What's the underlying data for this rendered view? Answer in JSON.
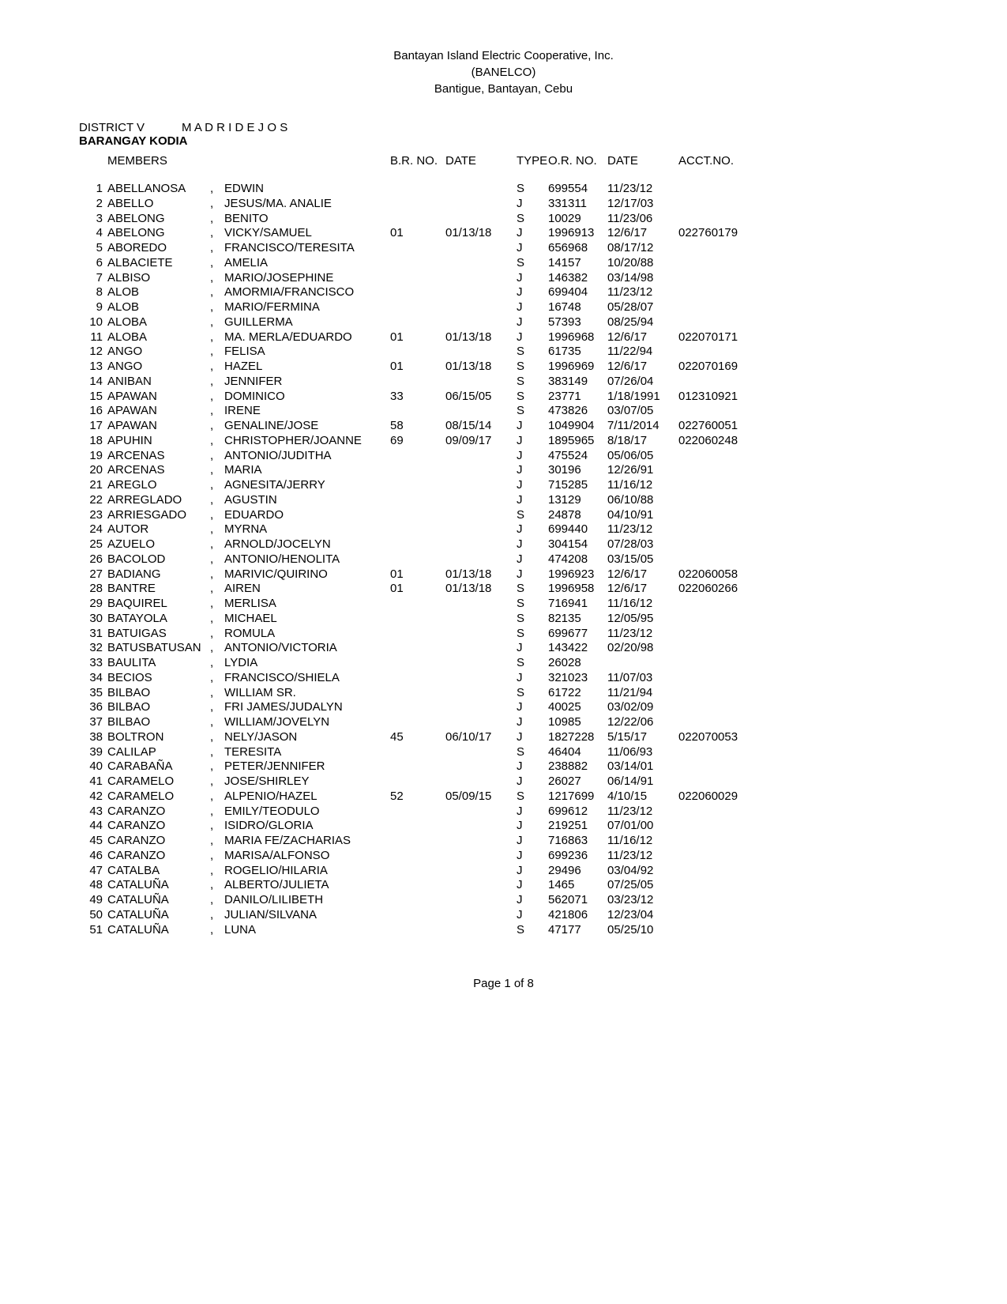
{
  "header": {
    "line1": "Bantayan Island Electric Cooperative, Inc.",
    "line2": "(BANELCO)",
    "line3": "Bantigue, Bantayan, Cebu"
  },
  "meta": {
    "district_label": "DISTRICT V",
    "district_value": "M A D R I D E J O S",
    "barangay_label": "BARANGAY  KODIA",
    "members_label": "MEMBERS"
  },
  "columns": {
    "brno": "B.R. NO.",
    "date": "DATE",
    "type": "TYPE",
    "orno": "O.R. NO.",
    "ordate": "DATE",
    "acct": "ACCT.NO."
  },
  "rows": [
    {
      "n": "1",
      "last": "ABELLANOSA",
      "first": "EDWIN",
      "brno": "",
      "brdate": "",
      "type": "S",
      "orno": "699554",
      "ordate": "11/23/12",
      "acct": ""
    },
    {
      "n": "2",
      "last": "ABELLO",
      "first": "JESUS/MA. ANALIE",
      "brno": "",
      "brdate": "",
      "type": "J",
      "orno": "331311",
      "ordate": "12/17/03",
      "acct": ""
    },
    {
      "n": "3",
      "last": "ABELONG",
      "first": "BENITO",
      "brno": "",
      "brdate": "",
      "type": "S",
      "orno": "10029",
      "ordate": "11/23/06",
      "acct": ""
    },
    {
      "n": "4",
      "last": "ABELONG",
      "first": "VICKY/SAMUEL",
      "brno": "01",
      "brdate": "01/13/18",
      "type": "J",
      "orno": "1996913",
      "ordate": "12/6/17",
      "acct": "022760179"
    },
    {
      "n": "5",
      "last": "ABOREDO",
      "first": "FRANCISCO/TERESITA",
      "brno": "",
      "brdate": "",
      "type": "J",
      "orno": "656968",
      "ordate": "08/17/12",
      "acct": ""
    },
    {
      "n": "6",
      "last": "ALBACIETE",
      "first": "AMELIA",
      "brno": "",
      "brdate": "",
      "type": "S",
      "orno": "14157",
      "ordate": "10/20/88",
      "acct": ""
    },
    {
      "n": "7",
      "last": "ALBISO",
      "first": "MARIO/JOSEPHINE",
      "brno": "",
      "brdate": "",
      "type": "J",
      "orno": "146382",
      "ordate": "03/14/98",
      "acct": ""
    },
    {
      "n": "8",
      "last": "ALOB",
      "first": "AMORMIA/FRANCISCO",
      "brno": "",
      "brdate": "",
      "type": "J",
      "orno": "699404",
      "ordate": "11/23/12",
      "acct": ""
    },
    {
      "n": "9",
      "last": "ALOB",
      "first": "MARIO/FERMINA",
      "brno": "",
      "brdate": "",
      "type": "J",
      "orno": "16748",
      "ordate": "05/28/07",
      "acct": ""
    },
    {
      "n": "10",
      "last": "ALOBA",
      "first": "GUILLERMA",
      "brno": "",
      "brdate": "",
      "type": "J",
      "orno": "57393",
      "ordate": "08/25/94",
      "acct": ""
    },
    {
      "n": "11",
      "last": "ALOBA",
      "first": "MA. MERLA/EDUARDO",
      "brno": "01",
      "brdate": "01/13/18",
      "type": "J",
      "orno": "1996968",
      "ordate": "12/6/17",
      "acct": "022070171"
    },
    {
      "n": "12",
      "last": "ANGO",
      "first": "FELISA",
      "brno": "",
      "brdate": "",
      "type": "S",
      "orno": "61735",
      "ordate": "11/22/94",
      "acct": ""
    },
    {
      "n": "13",
      "last": "ANGO",
      "first": "HAZEL",
      "brno": "01",
      "brdate": "01/13/18",
      "type": "S",
      "orno": "1996969",
      "ordate": "12/6/17",
      "acct": "022070169"
    },
    {
      "n": "14",
      "last": "ANIBAN",
      "first": "JENNIFER",
      "brno": "",
      "brdate": "",
      "type": "S",
      "orno": "383149",
      "ordate": "07/26/04",
      "acct": ""
    },
    {
      "n": "15",
      "last": "APAWAN",
      "first": "DOMINICO",
      "brno": "33",
      "brdate": "06/15/05",
      "type": "S",
      "orno": "23771",
      "ordate": "1/18/1991",
      "acct": "012310921"
    },
    {
      "n": "16",
      "last": "APAWAN",
      "first": "IRENE",
      "brno": "",
      "brdate": "",
      "type": "S",
      "orno": "473826",
      "ordate": "03/07/05",
      "acct": ""
    },
    {
      "n": "17",
      "last": "APAWAN",
      "first": "GENALINE/JOSE",
      "brno": "58",
      "brdate": "08/15/14",
      "type": "J",
      "orno": "1049904",
      "ordate": "7/11/2014",
      "acct": "022760051"
    },
    {
      "n": "18",
      "last": "APUHIN",
      "first": "CHRISTOPHER/JOANNE",
      "brno": "69",
      "brdate": "09/09/17",
      "type": "J",
      "orno": "1895965",
      "ordate": "8/18/17",
      "acct": "022060248"
    },
    {
      "n": "19",
      "last": "ARCENAS",
      "first": "ANTONIO/JUDITHA",
      "brno": "",
      "brdate": "",
      "type": "J",
      "orno": "475524",
      "ordate": "05/06/05",
      "acct": ""
    },
    {
      "n": "20",
      "last": "ARCENAS",
      "first": "MARIA",
      "brno": "",
      "brdate": "",
      "type": "J",
      "orno": "30196",
      "ordate": "12/26/91",
      "acct": ""
    },
    {
      "n": "21",
      "last": "AREGLO",
      "first": "AGNESITA/JERRY",
      "brno": "",
      "brdate": "",
      "type": "J",
      "orno": "715285",
      "ordate": "11/16/12",
      "acct": ""
    },
    {
      "n": "22",
      "last": "ARREGLADO",
      "first": "AGUSTIN",
      "brno": "",
      "brdate": "",
      "type": "J",
      "orno": "13129",
      "ordate": "06/10/88",
      "acct": ""
    },
    {
      "n": "23",
      "last": "ARRIESGADO",
      "first": "EDUARDO",
      "brno": "",
      "brdate": "",
      "type": "S",
      "orno": "24878",
      "ordate": "04/10/91",
      "acct": ""
    },
    {
      "n": "24",
      "last": "AUTOR",
      "first": "MYRNA",
      "brno": "",
      "brdate": "",
      "type": "J",
      "orno": "699440",
      "ordate": "11/23/12",
      "acct": ""
    },
    {
      "n": "25",
      "last": "AZUELO",
      "first": "ARNOLD/JOCELYN",
      "brno": "",
      "brdate": "",
      "type": "J",
      "orno": "304154",
      "ordate": "07/28/03",
      "acct": ""
    },
    {
      "n": "26",
      "last": "BACOLOD",
      "first": "ANTONIO/HENOLITA",
      "brno": "",
      "brdate": "",
      "type": "J",
      "orno": "474208",
      "ordate": "03/15/05",
      "acct": ""
    },
    {
      "n": "27",
      "last": "BADIANG",
      "first": "MARIVIC/QUIRINO",
      "brno": "01",
      "brdate": "01/13/18",
      "type": "J",
      "orno": "1996923",
      "ordate": "12/6/17",
      "acct": "022060058"
    },
    {
      "n": "28",
      "last": "BANTRE",
      "first": "AIREN",
      "brno": "01",
      "brdate": "01/13/18",
      "type": "S",
      "orno": "1996958",
      "ordate": "12/6/17",
      "acct": "022060266"
    },
    {
      "n": "29",
      "last": "BAQUIREL",
      "first": "MERLISA",
      "brno": "",
      "brdate": "",
      "type": "S",
      "orno": "716941",
      "ordate": "11/16/12",
      "acct": ""
    },
    {
      "n": "30",
      "last": "BATAYOLA",
      "first": "MICHAEL",
      "brno": "",
      "brdate": "",
      "type": "S",
      "orno": "82135",
      "ordate": "12/05/95",
      "acct": ""
    },
    {
      "n": "31",
      "last": "BATUIGAS",
      "first": "ROMULA",
      "brno": "",
      "brdate": "",
      "type": "S",
      "orno": "699677",
      "ordate": "11/23/12",
      "acct": ""
    },
    {
      "n": "32",
      "last": "BATUSBATUSAN",
      "first": "ANTONIO/VICTORIA",
      "brno": "",
      "brdate": "",
      "type": "J",
      "orno": "143422",
      "ordate": "02/20/98",
      "acct": ""
    },
    {
      "n": "33",
      "last": "BAULITA",
      "first": "LYDIA",
      "brno": "",
      "brdate": "",
      "type": "S",
      "orno": "26028",
      "ordate": "",
      "acct": ""
    },
    {
      "n": "34",
      "last": "BECIOS",
      "first": "FRANCISCO/SHIELA",
      "brno": "",
      "brdate": "",
      "type": "J",
      "orno": "321023",
      "ordate": "11/07/03",
      "acct": ""
    },
    {
      "n": "35",
      "last": "BILBAO",
      "first": "WILLIAM SR.",
      "brno": "",
      "brdate": "",
      "type": "S",
      "orno": "61722",
      "ordate": "11/21/94",
      "acct": ""
    },
    {
      "n": "36",
      "last": "BILBAO",
      "first": "FRI JAMES/JUDALYN",
      "brno": "",
      "brdate": "",
      "type": "J",
      "orno": "40025",
      "ordate": "03/02/09",
      "acct": ""
    },
    {
      "n": "37",
      "last": "BILBAO",
      "first": "WILLIAM/JOVELYN",
      "brno": "",
      "brdate": "",
      "type": "J",
      "orno": "10985",
      "ordate": "12/22/06",
      "acct": ""
    },
    {
      "n": "38",
      "last": "BOLTRON",
      "first": "NELY/JASON",
      "brno": "45",
      "brdate": "06/10/17",
      "type": "J",
      "orno": "1827228",
      "ordate": "5/15/17",
      "acct": "022070053"
    },
    {
      "n": "39",
      "last": "CALILAP",
      "first": "TERESITA",
      "brno": "",
      "brdate": "",
      "type": "S",
      "orno": "46404",
      "ordate": "11/06/93",
      "acct": ""
    },
    {
      "n": "40",
      "last": "CARABAÑA",
      "first": "PETER/JENNIFER",
      "brno": "",
      "brdate": "",
      "type": "J",
      "orno": "238882",
      "ordate": "03/14/01",
      "acct": ""
    },
    {
      "n": "41",
      "last": "CARAMELO",
      "first": "JOSE/SHIRLEY",
      "brno": "",
      "brdate": "",
      "type": "J",
      "orno": "26027",
      "ordate": "06/14/91",
      "acct": ""
    },
    {
      "n": "42",
      "last": "CARAMELO",
      "first": "ALPENIO/HAZEL",
      "brno": "52",
      "brdate": "05/09/15",
      "type": "S",
      "orno": "1217699",
      "ordate": "4/10/15",
      "acct": "022060029"
    },
    {
      "n": "43",
      "last": "CARANZO",
      "first": "EMILY/TEODULO",
      "brno": "",
      "brdate": "",
      "type": "J",
      "orno": "699612",
      "ordate": "11/23/12",
      "acct": ""
    },
    {
      "n": "44",
      "last": "CARANZO",
      "first": "ISIDRO/GLORIA",
      "brno": "",
      "brdate": "",
      "type": "J",
      "orno": "219251",
      "ordate": "07/01/00",
      "acct": ""
    },
    {
      "n": "45",
      "last": "CARANZO",
      "first": "MARIA FE/ZACHARIAS",
      "brno": "",
      "brdate": "",
      "type": "J",
      "orno": "716863",
      "ordate": "11/16/12",
      "acct": ""
    },
    {
      "n": "46",
      "last": "CARANZO",
      "first": "MARISA/ALFONSO",
      "brno": "",
      "brdate": "",
      "type": "J",
      "orno": "699236",
      "ordate": "11/23/12",
      "acct": ""
    },
    {
      "n": "47",
      "last": "CATALBA",
      "first": "ROGELIO/HILARIA",
      "brno": "",
      "brdate": "",
      "type": "J",
      "orno": "29496",
      "ordate": "03/04/92",
      "acct": ""
    },
    {
      "n": "48",
      "last": "CATALUÑA",
      "first": "ALBERTO/JULIETA",
      "brno": "",
      "brdate": "",
      "type": "J",
      "orno": "1465",
      "ordate": "07/25/05",
      "acct": ""
    },
    {
      "n": "49",
      "last": "CATALUÑA",
      "first": "DANILO/LILIBETH",
      "brno": "",
      "brdate": "",
      "type": "J",
      "orno": "562071",
      "ordate": "03/23/12",
      "acct": ""
    },
    {
      "n": "50",
      "last": "CATALUÑA",
      "first": "JULIAN/SILVANA",
      "brno": "",
      "brdate": "",
      "type": "J",
      "orno": "421806",
      "ordate": "12/23/04",
      "acct": ""
    },
    {
      "n": "51",
      "last": "CATALUÑA",
      "first": "LUNA",
      "brno": "",
      "brdate": "",
      "type": "S",
      "orno": "47177",
      "ordate": "05/25/10",
      "acct": ""
    }
  ],
  "footer": "Page 1 of 8"
}
